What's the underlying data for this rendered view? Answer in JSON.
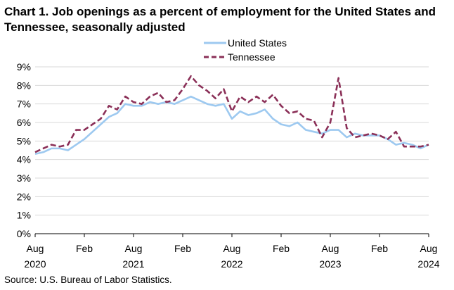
{
  "chart_data": {
    "type": "line",
    "title": "Chart 1. Job openings as a percent of employment for the United States and Tennessee, seasonally adjusted",
    "source": "Source: U.S. Bureau of Labor Statistics.",
    "ylim": [
      0,
      9
    ],
    "yticks": [
      "0%",
      "1%",
      "2%",
      "3%",
      "4%",
      "5%",
      "6%",
      "7%",
      "8%",
      "9%"
    ],
    "xticks": [
      {
        "index": 0,
        "line1": "Aug",
        "line2": "2020"
      },
      {
        "index": 6,
        "line1": "Feb",
        "line2": ""
      },
      {
        "index": 12,
        "line1": "Aug",
        "line2": "2021"
      },
      {
        "index": 18,
        "line1": "Feb",
        "line2": ""
      },
      {
        "index": 24,
        "line1": "Aug",
        "line2": "2022"
      },
      {
        "index": 30,
        "line1": "Feb",
        "line2": ""
      },
      {
        "index": 36,
        "line1": "Aug",
        "line2": "2023"
      },
      {
        "index": 42,
        "line1": "Feb",
        "line2": ""
      },
      {
        "index": 48,
        "line1": "Aug",
        "line2": "2024"
      }
    ],
    "x_count": 49,
    "series": [
      {
        "name": "United States",
        "color": "#9dc9f0",
        "style": "solid",
        "values": [
          4.3,
          4.4,
          4.6,
          4.6,
          4.5,
          4.8,
          5.1,
          5.5,
          5.9,
          6.3,
          6.5,
          7.0,
          6.9,
          6.9,
          7.1,
          7.0,
          7.1,
          7.0,
          7.2,
          7.4,
          7.2,
          7.0,
          6.9,
          7.0,
          6.2,
          6.6,
          6.4,
          6.5,
          6.7,
          6.2,
          5.9,
          5.8,
          6.0,
          5.6,
          5.5,
          5.4,
          5.6,
          5.6,
          5.2,
          5.4,
          5.3,
          5.3,
          5.3,
          5.1,
          4.8,
          4.9,
          4.8,
          4.6,
          4.8
        ]
      },
      {
        "name": "Tennessee",
        "color": "#8b3058",
        "style": "dashed",
        "values": [
          4.4,
          4.6,
          4.8,
          4.7,
          4.8,
          5.6,
          5.6,
          5.9,
          6.2,
          6.9,
          6.7,
          7.4,
          7.1,
          7.0,
          7.4,
          7.6,
          7.1,
          7.2,
          7.8,
          8.5,
          8.0,
          7.7,
          7.3,
          7.8,
          6.6,
          7.4,
          7.1,
          7.4,
          7.1,
          7.5,
          6.9,
          6.5,
          6.6,
          6.2,
          6.1,
          5.2,
          6.0,
          8.4,
          5.7,
          5.2,
          5.3,
          5.4,
          5.3,
          5.1,
          5.5,
          4.7,
          4.7,
          4.7,
          4.8
        ]
      }
    ]
  }
}
